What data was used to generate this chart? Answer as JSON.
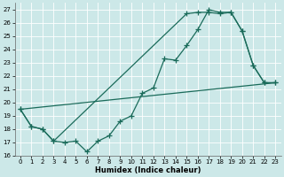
{
  "xlabel": "Humidex (Indice chaleur)",
  "bg_color": "#cce8e8",
  "line_color": "#1a6b5a",
  "grid_color": "#ffffff",
  "xlim": [
    -0.5,
    23.5
  ],
  "ylim": [
    16,
    27.5
  ],
  "yticks": [
    16,
    17,
    18,
    19,
    20,
    21,
    22,
    23,
    24,
    25,
    26,
    27
  ],
  "xticks": [
    0,
    1,
    2,
    3,
    4,
    5,
    6,
    7,
    8,
    9,
    10,
    11,
    12,
    13,
    14,
    15,
    16,
    17,
    18,
    19,
    20,
    21,
    22,
    23
  ],
  "curve1_x": [
    0,
    1,
    2,
    3,
    4,
    5,
    6,
    7,
    8,
    9,
    10,
    11,
    12,
    13,
    14,
    15,
    16,
    17,
    18,
    19,
    20,
    21,
    22,
    23
  ],
  "curve1_y": [
    19.5,
    18.2,
    18.0,
    17.1,
    17.0,
    17.1,
    16.3,
    17.1,
    17.5,
    18.6,
    19.0,
    20.7,
    21.1,
    23.3,
    23.2,
    24.3,
    25.5,
    27.0,
    26.8,
    26.8,
    25.4,
    22.8,
    21.5,
    21.5
  ],
  "curve2_x": [
    0,
    1,
    2,
    3,
    15,
    16,
    17,
    18,
    19,
    20,
    21,
    22,
    23
  ],
  "curve2_y": [
    19.5,
    18.2,
    18.0,
    17.1,
    26.7,
    26.8,
    26.8,
    26.7,
    26.8,
    25.4,
    22.8,
    21.5,
    21.5
  ],
  "line3_x": [
    0,
    23
  ],
  "line3_y": [
    19.5,
    21.5
  ]
}
